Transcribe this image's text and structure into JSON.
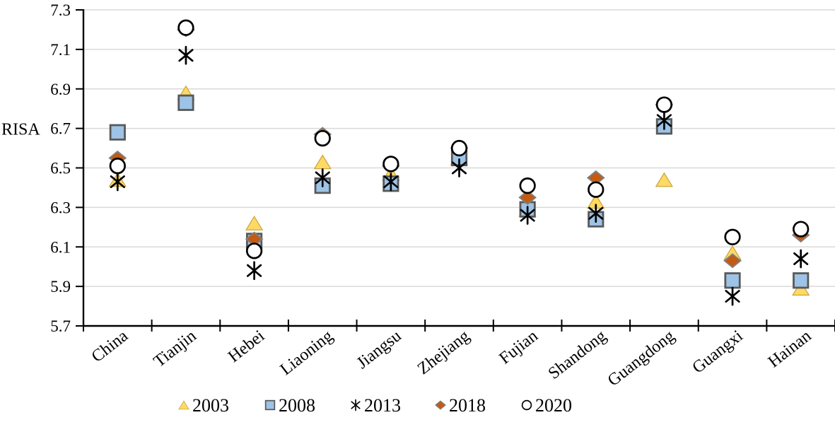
{
  "chart_data": {
    "type": "scatter",
    "title": "",
    "xlabel": "",
    "ylabel": "RISA",
    "categories": [
      "China",
      "Tianjin",
      "Hebei",
      "Liaoning",
      "Jiangsu",
      "Zhejiang",
      "Fujian",
      "Shandong",
      "Guangdong",
      "Guangxi",
      "Hainan"
    ],
    "series": [
      {
        "name": "2003",
        "marker": "triangle",
        "color": "#FFD966",
        "border": "#CDA83C",
        "values": [
          6.44,
          6.88,
          6.22,
          6.53,
          6.47,
          6.55,
          6.29,
          6.33,
          6.44,
          6.07,
          5.89
        ]
      },
      {
        "name": "2008",
        "marker": "square",
        "color": "#9DC3E6",
        "border": "#595959",
        "values": [
          6.68,
          6.83,
          6.13,
          6.41,
          6.42,
          6.55,
          6.29,
          6.24,
          6.71,
          5.93,
          5.93
        ]
      },
      {
        "name": "2013",
        "marker": "asterisk",
        "color": "#000000",
        "border": "#000000",
        "values": [
          6.43,
          7.07,
          5.98,
          6.45,
          6.43,
          6.5,
          6.26,
          6.27,
          6.74,
          5.85,
          6.04
        ]
      },
      {
        "name": "2018",
        "marker": "diamond",
        "color": "#C55A11",
        "border": "#7F7F7F",
        "values": [
          6.55,
          7.2,
          6.14,
          6.67,
          6.51,
          6.6,
          6.35,
          6.45,
          6.82,
          6.03,
          6.16
        ]
      },
      {
        "name": "2020",
        "marker": "circle",
        "color": "#FFFFFF",
        "border": "#000000",
        "values": [
          6.51,
          7.21,
          6.08,
          6.65,
          6.52,
          6.6,
          6.41,
          6.39,
          6.82,
          6.15,
          6.19
        ]
      }
    ],
    "ylim": [
      5.7,
      7.3
    ],
    "y_tick_step": 0.2,
    "y_ticks": [
      "7.3",
      "7.1",
      "6.9",
      "6.7",
      "6.5",
      "6.3",
      "6.1",
      "5.9",
      "5.7"
    ],
    "grid": true,
    "legend_position": "bottom",
    "colors": {
      "gridline": "#D9D9D9",
      "axis": "#000000",
      "text": "#000000",
      "background": "#FFFFFF"
    }
  }
}
